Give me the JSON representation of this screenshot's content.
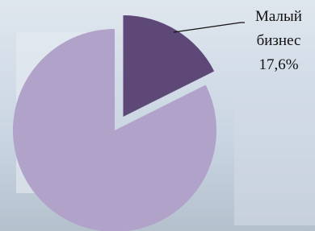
{
  "chart_data": {
    "type": "pie",
    "categories": [
      "Малый бизнес",
      null
    ],
    "values": [
      17.6,
      82.4
    ],
    "value_labels": [
      "17,6%",
      null
    ],
    "colors": [
      "#5e4878",
      "#b0a2c8"
    ],
    "exploded": [
      true,
      false
    ]
  }
}
